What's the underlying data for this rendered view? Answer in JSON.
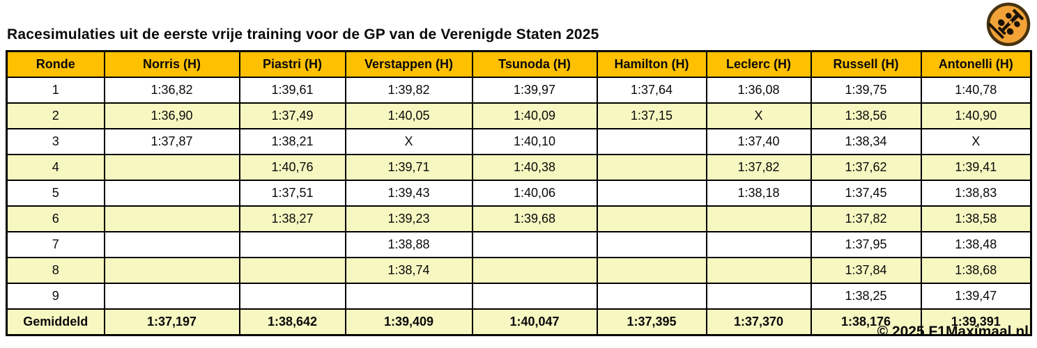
{
  "title": "Racesimulaties uit de eerste vrije training voor de GP van de Verenigde Staten 2025",
  "footer": "© 2025 F1Maximaal.nl",
  "logo": {
    "icon": "f1-car-icon",
    "circle_color": "#F2A237",
    "ring_color": "#46320F",
    "car_color": "#1a1208"
  },
  "colors": {
    "header_bg": "#FFC000",
    "average_bg": "#FFC000",
    "row_bg": "#FFFFFF",
    "row_alt_bg": "#F7F7C2",
    "border": "#000000",
    "text": "#0a0a0a"
  },
  "chart_data": {
    "type": "table",
    "columns": [
      "Ronde",
      "Norris (H)",
      "Piastri (H)",
      "Verstappen (H)",
      "Tsunoda (H)",
      "Hamilton (H)",
      "Leclerc (H)",
      "Russell (H)",
      "Antonelli (H)"
    ],
    "rows": [
      [
        "1",
        "1:36,82",
        "1:39,61",
        "1:39,82",
        "1:39,97",
        "1:37,64",
        "1:36,08",
        "1:39,75",
        "1:40,78"
      ],
      [
        "2",
        "1:36,90",
        "1:37,49",
        "1:40,05",
        "1:40,09",
        "1:37,15",
        "X",
        "1:38,56",
        "1:40,90"
      ],
      [
        "3",
        "1:37,87",
        "1:38,21",
        "X",
        "1:40,10",
        "",
        "1:37,40",
        "1:38,34",
        "X"
      ],
      [
        "4",
        "",
        "1:40,76",
        "1:39,71",
        "1:40,38",
        "",
        "1:37,82",
        "1:37,62",
        "1:39,41"
      ],
      [
        "5",
        "",
        "1:37,51",
        "1:39,43",
        "1:40,06",
        "",
        "1:38,18",
        "1:37,45",
        "1:38,83"
      ],
      [
        "6",
        "",
        "1:38,27",
        "1:39,23",
        "1:39,68",
        "",
        "",
        "1:37,82",
        "1:38,58"
      ],
      [
        "7",
        "",
        "",
        "1:38,88",
        "",
        "",
        "",
        "1:37,95",
        "1:38,48"
      ],
      [
        "8",
        "",
        "",
        "1:38,74",
        "",
        "",
        "",
        "1:37,84",
        "1:38,68"
      ],
      [
        "9",
        "",
        "",
        "",
        "",
        "",
        "",
        "1:38,25",
        "1:39,47"
      ]
    ],
    "average_row": [
      "Gemiddeld",
      "1:37,197",
      "1:38,642",
      "1:39,409",
      "1:40,047",
      "1:37,395",
      "1:37,370",
      "1:38,176",
      "1:39,391"
    ]
  }
}
